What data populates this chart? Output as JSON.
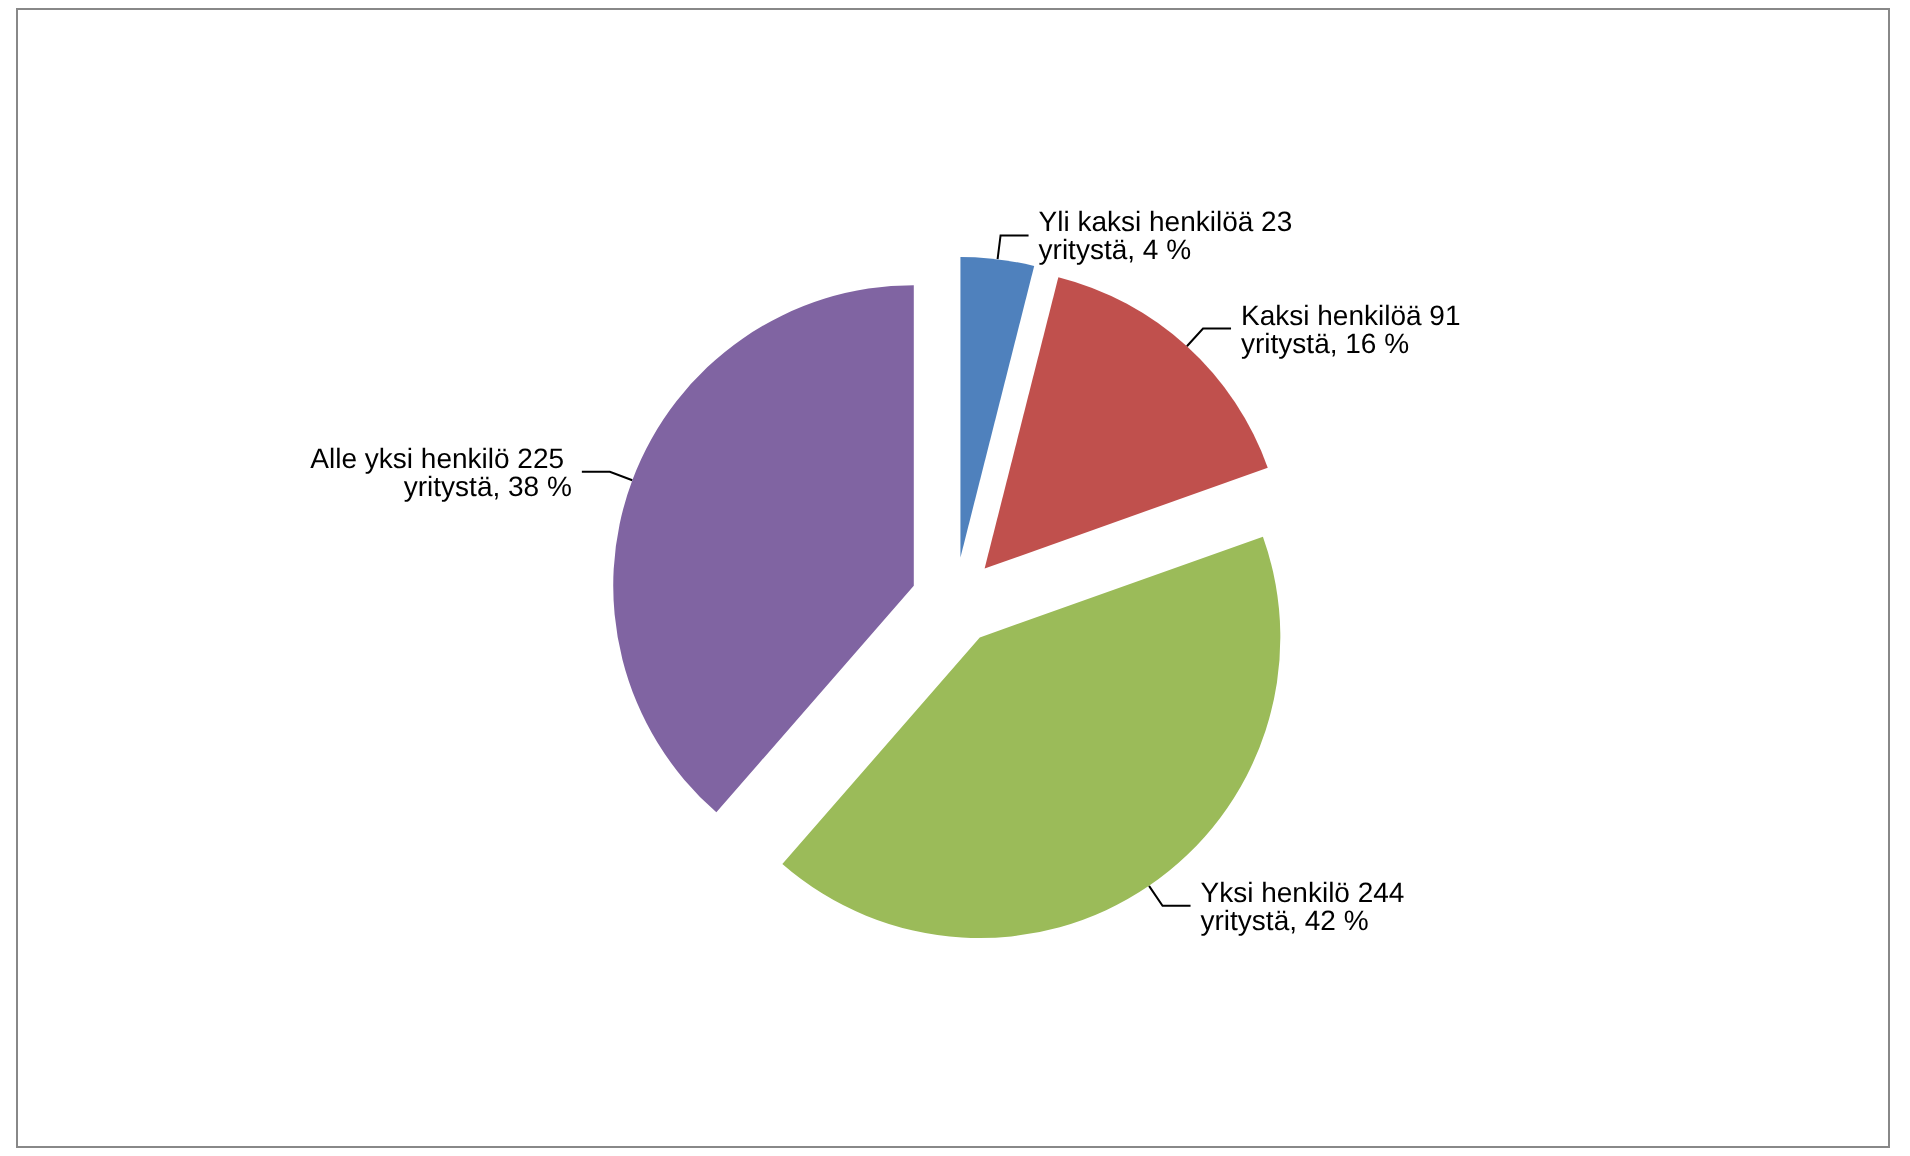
{
  "chart_data": {
    "type": "pie",
    "categories": [
      "Yli kaksi henkilöä",
      "Kaksi henkilöä",
      "Yksi henkilö",
      "Alle yksi henkilö"
    ],
    "values": [
      23,
      91,
      244,
      225
    ],
    "value_labels": [
      "23 yritystä, 4 %",
      "91 yritystä, 16 %",
      "244 yritystä, 42 %",
      "225 yritystä, 38 %"
    ],
    "colors": [
      "#4f81bd",
      "#c0504d",
      "#9bbb59",
      "#8064a2"
    ],
    "legend": false
  }
}
